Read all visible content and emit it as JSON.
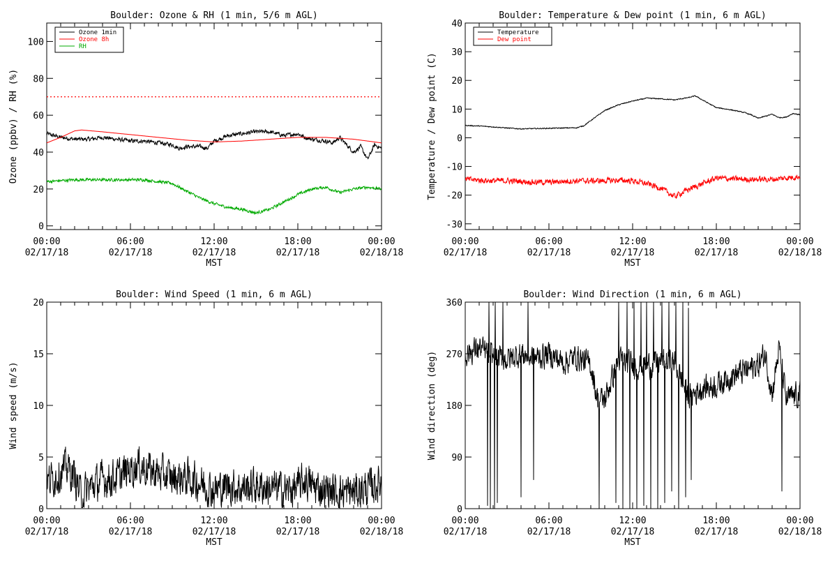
{
  "chart_data": [
    {
      "type": "line",
      "title": "Boulder: Ozone & RH (1 min, 5/6 m AGL)",
      "ylabel": "Ozone (ppbv) / RH (%)",
      "xlabel": "MST",
      "xlim": [
        "02/17/18 00:00",
        "02/18/18 00:00"
      ],
      "ylim": [
        -2,
        110
      ],
      "yticks": [
        0,
        20,
        40,
        60,
        80,
        100
      ],
      "xticks": [
        {
          "t": "00:00",
          "d": "02/17/18"
        },
        {
          "t": "06:00",
          "d": "02/17/18"
        },
        {
          "t": "12:00",
          "d": "02/17/18"
        },
        {
          "t": "18:00",
          "d": "02/17/18"
        },
        {
          "t": "00:00",
          "d": "02/18/18"
        }
      ],
      "legend_position": "top-left",
      "reference_lines": [
        {
          "y": 70,
          "color": "#ff0000",
          "style": "dotted"
        }
      ],
      "series": [
        {
          "name": "Ozone 1min",
          "color": "#000000",
          "noise": 1.0,
          "x_hours": [
            0,
            1,
            2,
            3,
            4,
            5,
            6,
            7,
            8,
            9,
            9.5,
            10,
            11,
            11.5,
            12,
            13,
            14,
            15,
            16,
            17,
            18,
            18.5,
            19,
            20,
            20.5,
            21,
            22,
            22.5,
            23,
            23.5,
            24
          ],
          "values": [
            50,
            48,
            47,
            47,
            48,
            47,
            46,
            46,
            45,
            44,
            42,
            43,
            43,
            42,
            46,
            49,
            50,
            51,
            51,
            49,
            50,
            48,
            47,
            46,
            45,
            48,
            40,
            43,
            36,
            44,
            42
          ]
        },
        {
          "name": "Ozone 8h",
          "color": "#ff0000",
          "noise": 0,
          "x_hours": [
            0,
            1,
            2,
            2.5,
            4,
            6,
            8,
            10,
            12,
            14,
            16,
            18,
            20,
            22,
            24
          ],
          "values": [
            45,
            48,
            51.5,
            52,
            51,
            49.5,
            48,
            46.5,
            45.5,
            46,
            47,
            48,
            48,
            47,
            45
          ]
        },
        {
          "name": "RH",
          "color": "#00aa00",
          "noise": 0.7,
          "x_hours": [
            0,
            2,
            4,
            6,
            7,
            8,
            9,
            10,
            11,
            12,
            13,
            14,
            15,
            16,
            17,
            18,
            19,
            20,
            21,
            22,
            23,
            24
          ],
          "values": [
            24,
            25,
            25,
            25,
            25,
            24,
            23,
            19,
            15,
            12,
            10,
            9,
            7,
            9,
            13,
            17,
            20,
            21,
            18,
            20,
            21,
            20
          ]
        }
      ]
    },
    {
      "type": "line",
      "title": "Boulder: Temperature & Dew point (1 min, 6 m AGL)",
      "ylabel": "Temperature / Dew point (C)",
      "xlabel": "MST",
      "xlim": [
        "02/17/18 00:00",
        "02/18/18 00:00"
      ],
      "ylim": [
        -32,
        40
      ],
      "yticks": [
        -30,
        -20,
        -10,
        0,
        10,
        20,
        30,
        40
      ],
      "xticks": [
        {
          "t": "00:00",
          "d": "02/17/18"
        },
        {
          "t": "06:00",
          "d": "02/17/18"
        },
        {
          "t": "12:00",
          "d": "02/17/18"
        },
        {
          "t": "18:00",
          "d": "02/17/18"
        },
        {
          "t": "00:00",
          "d": "02/18/18"
        }
      ],
      "legend_position": "top-left",
      "reference_lines": [],
      "series": [
        {
          "name": "Temperature",
          "color": "#000000",
          "noise": 0.15,
          "x_hours": [
            0,
            1,
            2,
            3,
            4,
            5,
            6,
            7,
            8,
            8.5,
            9,
            10,
            11,
            12,
            13,
            14,
            15,
            16,
            16.5,
            17,
            18,
            19,
            20,
            20.5,
            21,
            22,
            22.5,
            23,
            23.5,
            24
          ],
          "values": [
            4.3,
            4.1,
            3.8,
            3.4,
            3.1,
            3.2,
            3.3,
            3.4,
            3.5,
            4.2,
            6.0,
            9.5,
            11.5,
            12.8,
            13.8,
            13.6,
            13.2,
            14.0,
            14.6,
            13.2,
            10.5,
            9.8,
            8.8,
            8.0,
            6.8,
            8.2,
            7.0,
            7.2,
            8.5,
            8.0
          ]
        },
        {
          "name": "Dew point",
          "color": "#ff0000",
          "noise": 0.9,
          "x_hours": [
            0,
            1,
            2,
            3,
            4,
            5,
            6,
            7,
            8,
            9,
            10,
            11,
            12,
            13,
            14,
            15,
            16,
            17,
            18,
            19,
            20,
            21,
            22,
            23,
            24
          ],
          "values": [
            -14.5,
            -14.8,
            -15.0,
            -15.0,
            -15.2,
            -15.5,
            -15.5,
            -15.2,
            -15.0,
            -15.0,
            -15.0,
            -14.8,
            -15.0,
            -16.0,
            -17.5,
            -20.5,
            -18.0,
            -16.0,
            -14.0,
            -14.3,
            -14.5,
            -14.5,
            -14.5,
            -14.0,
            -13.5
          ]
        }
      ]
    },
    {
      "type": "line",
      "title": "Boulder: Wind Speed (1 min, 6 m AGL)",
      "ylabel": "Wind speed (m/s)",
      "xlabel": "MST",
      "xlim": [
        "02/17/18 00:00",
        "02/18/18 00:00"
      ],
      "ylim": [
        0,
        20
      ],
      "yticks": [
        0,
        5,
        10,
        15,
        20
      ],
      "xticks": [
        {
          "t": "00:00",
          "d": "02/17/18"
        },
        {
          "t": "06:00",
          "d": "02/17/18"
        },
        {
          "t": "12:00",
          "d": "02/17/18"
        },
        {
          "t": "18:00",
          "d": "02/17/18"
        },
        {
          "t": "00:00",
          "d": "02/18/18"
        }
      ],
      "legend_position": "none",
      "reference_lines": [],
      "series": [
        {
          "color": "#000000",
          "noise": 1.6,
          "clip_min": 0.1,
          "x_hours": [
            0,
            1,
            1.5,
            2,
            2.5,
            3,
            4,
            5,
            6,
            6.5,
            7,
            8,
            9,
            10,
            11,
            12,
            13,
            14,
            15,
            16,
            17,
            18,
            18.5,
            19,
            20,
            21,
            22,
            23,
            24
          ],
          "values": [
            2.5,
            3.5,
            4.0,
            3.0,
            1.2,
            2.0,
            2.8,
            3.0,
            3.8,
            4.2,
            4.0,
            3.4,
            3.0,
            3.0,
            2.5,
            1.8,
            2.2,
            2.0,
            2.2,
            2.0,
            1.8,
            2.0,
            2.8,
            2.2,
            1.8,
            1.6,
            1.6,
            2.0,
            2.5
          ]
        }
      ]
    },
    {
      "type": "line",
      "title": "Boulder: Wind Direction (1 min, 6 m AGL)",
      "ylabel": "Wind direction (deg)",
      "xlabel": "MST",
      "xlim": [
        "02/17/18 00:00",
        "02/18/18 00:00"
      ],
      "ylim": [
        0,
        360
      ],
      "yticks": [
        0,
        90,
        180,
        270,
        360
      ],
      "xticks": [
        {
          "t": "00:00",
          "d": "02/17/18"
        },
        {
          "t": "06:00",
          "d": "02/17/18"
        },
        {
          "t": "12:00",
          "d": "02/17/18"
        },
        {
          "t": "18:00",
          "d": "02/17/18"
        },
        {
          "t": "00:00",
          "d": "02/18/18"
        }
      ],
      "legend_position": "none",
      "reference_lines": [],
      "series": [
        {
          "color": "#000000",
          "noise": 20,
          "clip_min": 0,
          "clip_max": 360,
          "x_hours": [
            0,
            1,
            2,
            3,
            4,
            5,
            6,
            7,
            8,
            9,
            9.5,
            10,
            11,
            12,
            13,
            14,
            15,
            16,
            17,
            18,
            19,
            20,
            21,
            21.5,
            22,
            22.5,
            23,
            24
          ],
          "values": [
            270,
            280,
            265,
            260,
            270,
            262,
            270,
            255,
            265,
            250,
            190,
            190,
            260,
            250,
            250,
            255,
            255,
            195,
            210,
            215,
            230,
            240,
            250,
            270,
            200,
            280,
            190,
            200
          ],
          "spikes": [
            {
              "h": 1.6,
              "v": 5
            },
            {
              "h": 1.7,
              "v": 360
            },
            {
              "h": 1.8,
              "v": 0
            },
            {
              "h": 2.1,
              "v": 0
            },
            {
              "h": 2.15,
              "v": 360
            },
            {
              "h": 2.3,
              "v": 10
            },
            {
              "h": 2.7,
              "v": 360
            },
            {
              "h": 4.0,
              "v": 20
            },
            {
              "h": 4.5,
              "v": 360
            },
            {
              "h": 4.9,
              "v": 50
            },
            {
              "h": 9.6,
              "v": 0
            },
            {
              "h": 10.8,
              "v": 10
            },
            {
              "h": 11.0,
              "v": 360
            },
            {
              "h": 11.3,
              "v": 0
            },
            {
              "h": 11.6,
              "v": 360
            },
            {
              "h": 11.8,
              "v": 0
            },
            {
              "h": 12.1,
              "v": 360
            },
            {
              "h": 12.3,
              "v": 0
            },
            {
              "h": 12.6,
              "v": 360
            },
            {
              "h": 12.8,
              "v": 5
            },
            {
              "h": 13.0,
              "v": 360
            },
            {
              "h": 13.3,
              "v": 0
            },
            {
              "h": 13.5,
              "v": 360
            },
            {
              "h": 13.8,
              "v": 0
            },
            {
              "h": 14.1,
              "v": 360
            },
            {
              "h": 14.3,
              "v": 10
            },
            {
              "h": 14.6,
              "v": 360
            },
            {
              "h": 14.8,
              "v": 30
            },
            {
              "h": 15.1,
              "v": 360
            },
            {
              "h": 15.3,
              "v": 0
            },
            {
              "h": 15.6,
              "v": 360
            },
            {
              "h": 15.8,
              "v": 20
            },
            {
              "h": 16.0,
              "v": 350
            },
            {
              "h": 16.2,
              "v": 50
            },
            {
              "h": 22.7,
              "v": 30
            }
          ]
        }
      ]
    }
  ]
}
